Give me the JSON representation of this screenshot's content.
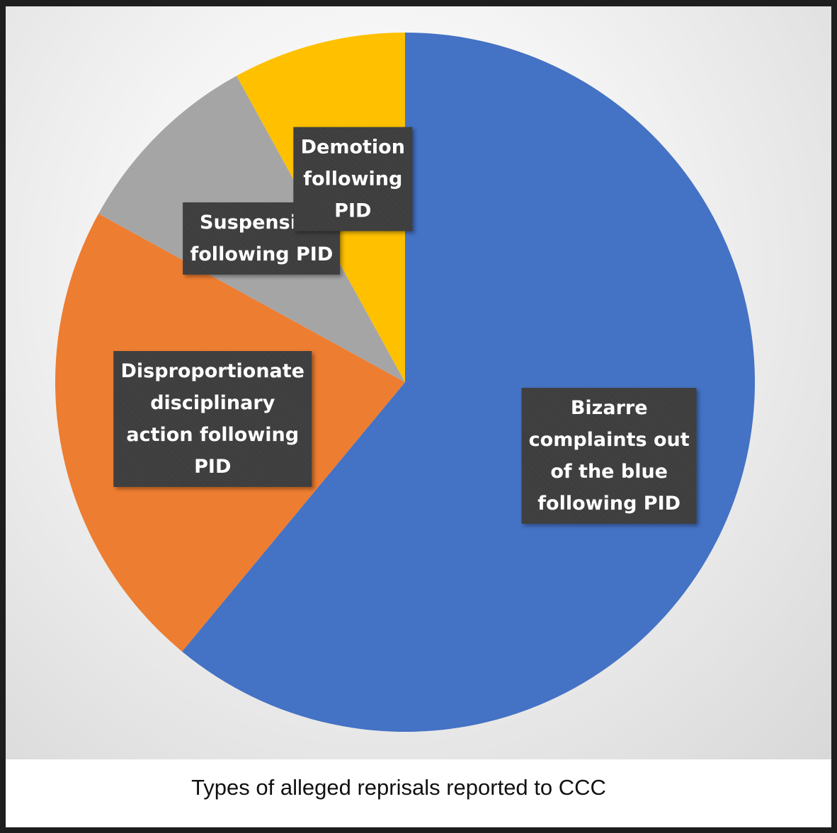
{
  "chart_data": {
    "type": "pie",
    "title": "",
    "caption": "Types of alleged reprisals reported to CCC",
    "slices": [
      {
        "label": "Bizarre complaints out of the blue following PID",
        "label_lines": [
          "Bizarre",
          "complaints out",
          "of the blue",
          "following PID"
        ],
        "value": 61,
        "color": "#4472C4"
      },
      {
        "label": "Disproportionate disciplinary action following PID",
        "label_lines": [
          "Disproportionate",
          "disciplinary",
          "action following",
          "PID"
        ],
        "value": 22,
        "color": "#ED7D31"
      },
      {
        "label": "Suspension following PID",
        "label_lines": [
          "Suspension",
          "following PID"
        ],
        "value": 9,
        "color": "#A5A5A5"
      },
      {
        "label": "Demotion following PID",
        "label_lines": [
          "Demotion",
          "following",
          "PID"
        ],
        "value": 8,
        "color": "#FFC000"
      }
    ],
    "start_angle_deg": 0,
    "direction": "clockwise",
    "legend": "none"
  }
}
